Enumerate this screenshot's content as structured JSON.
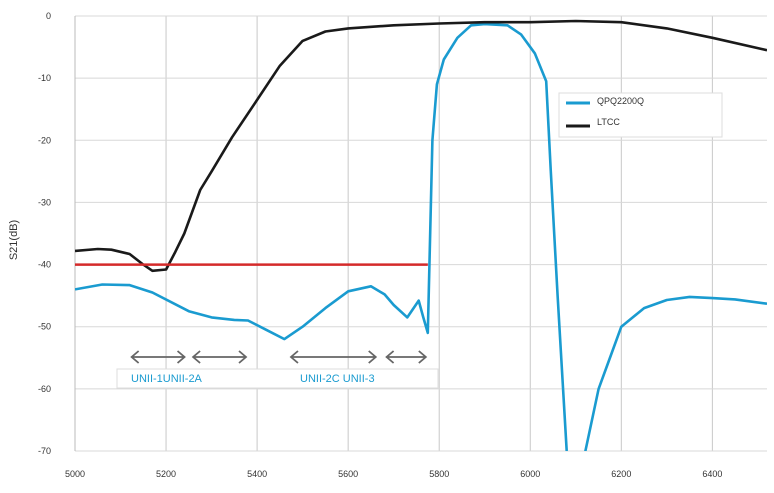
{
  "chart_data": {
    "type": "line",
    "title": "",
    "xlabel": "",
    "ylabel": "S21(dB)",
    "xlim": [
      5000,
      6520
    ],
    "ylim": [
      -70,
      0
    ],
    "xticks": [
      5000,
      5200,
      5400,
      5600,
      5800,
      6000,
      6200,
      6400
    ],
    "yticks": [
      0,
      -10,
      -20,
      -30,
      -40,
      -50,
      -60,
      -70
    ],
    "grid": true,
    "legend": "upper-right",
    "series": [
      {
        "name": "QPQ2200Q",
        "color": "#1a9bd0",
        "x": [
          5000,
          5060,
          5120,
          5170,
          5250,
          5300,
          5350,
          5380,
          5420,
          5460,
          5500,
          5550,
          5600,
          5650,
          5680,
          5700,
          5730,
          5755,
          5765,
          5775,
          5785,
          5795,
          5810,
          5840,
          5870,
          5900,
          5950,
          5980,
          6010,
          6035,
          6045,
          6060,
          6080,
          6100,
          6121,
          6150,
          6170,
          6200,
          6250,
          6300,
          6350,
          6400,
          6450,
          6520
        ],
        "y": [
          -44,
          -43.2,
          -43.3,
          -44.5,
          -47.5,
          -48.5,
          -48.9,
          -49,
          -50.5,
          -52,
          -50,
          -47,
          -44.3,
          -43.5,
          -44.8,
          -46.5,
          -48.5,
          -45.8,
          -48.5,
          -51,
          -20,
          -11,
          -7,
          -3.5,
          -1.5,
          -1.3,
          -1.5,
          -3,
          -6,
          -10.5,
          -25,
          -45,
          -70,
          -80,
          -70,
          -60,
          -56,
          -50,
          -47,
          -45.7,
          -45.2,
          -45.4,
          -45.6,
          -46.3
        ]
      },
      {
        "name": "LTCC",
        "color": "#1a1a1a",
        "x": [
          5000,
          5050,
          5080,
          5120,
          5150,
          5170,
          5200,
          5220,
          5240,
          5275,
          5300,
          5345,
          5400,
          5450,
          5500,
          5550,
          5600,
          5700,
          5800,
          5900,
          6000,
          6100,
          6200,
          6300,
          6400,
          6520
        ],
        "y": [
          -37.8,
          -37.5,
          -37.6,
          -38.3,
          -40,
          -41,
          -40.8,
          -38,
          -35,
          -28,
          -25,
          -19.5,
          -13.5,
          -8,
          -4,
          -2.5,
          -2,
          -1.5,
          -1.2,
          -1,
          -1,
          -0.8,
          -1,
          -2,
          -3.5,
          -5.5
        ]
      }
    ],
    "annotations": {
      "limit_line": {
        "y": -40,
        "x": [
          5000,
          5775
        ],
        "color": "#d42a2a"
      },
      "band_arrows": [
        [
          5120,
          5245
        ],
        [
          5255,
          5380
        ],
        [
          5470,
          5665
        ],
        [
          5680,
          5775
        ]
      ],
      "band_labels": [
        "UNII-1UNII-2A",
        "UNII-2C UNII-3"
      ],
      "label_color": "#1a9bd0"
    }
  }
}
